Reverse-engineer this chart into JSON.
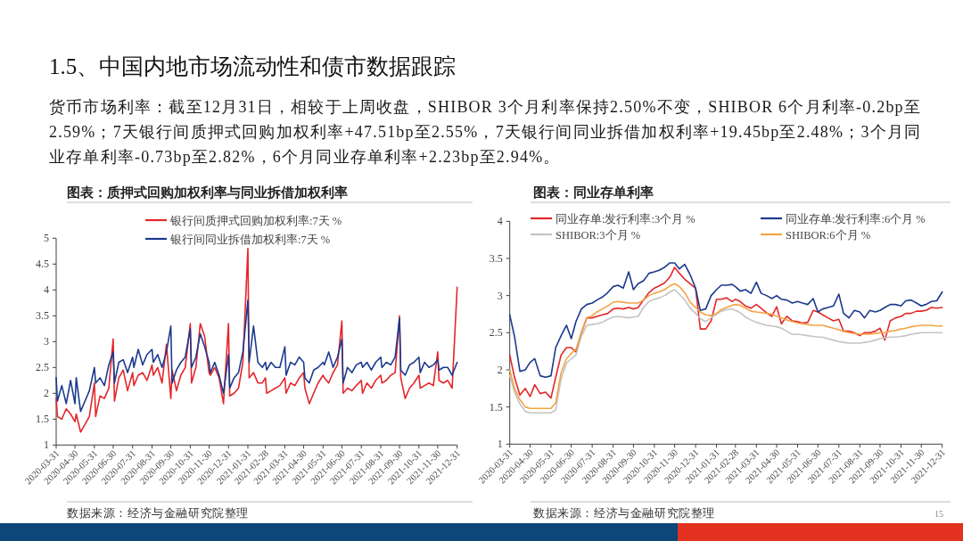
{
  "chart_data": [
    {
      "type": "other",
      "title": "1.5、中国内地市场流动性和债市数据跟踪",
      "annotations": [
        "货币市场利率：截至12月31日，相较于上周收盘，SHIBOR 3个月利率保持2.50%不变，SHIBOR 6个月利率-0.2bp至2.59%；7天银行间质押式回购加权利率+47.51bp至2.55%，7天银行间同业拆借加权利率+19.45bp至2.48%；3个月同业存单利率-0.73bp至2.82%，6个月同业存单利率+2.23bp至2.94%。",
        "15"
      ]
    },
    {
      "type": "line",
      "title": "图表：质押式回购加权利率与同业拆借加权利率",
      "annotations": [
        "数据来源：经济与金融研究院整理"
      ],
      "legend": "top",
      "line_style": "solid",
      "x": [
        "2020-03-31",
        "2020-04-02",
        "2020-04-09",
        "2020-04-16",
        "2020-04-23",
        "2020-04-30",
        "2020-05-02",
        "2020-05-09",
        "2020-05-16",
        "2020-05-23",
        "2020-05-31",
        "2020-06-02",
        "2020-06-09",
        "2020-06-16",
        "2020-06-23",
        "2020-06-30",
        "2020-07-02",
        "2020-07-09",
        "2020-07-16",
        "2020-07-23",
        "2020-07-31",
        "2020-08-02",
        "2020-08-09",
        "2020-08-16",
        "2020-08-23",
        "2020-08-31",
        "2020-09-02",
        "2020-09-09",
        "2020-09-16",
        "2020-09-23",
        "2020-09-30",
        "2020-10-02",
        "2020-10-09",
        "2020-10-16",
        "2020-10-23",
        "2020-10-31",
        "2020-11-02",
        "2020-11-09",
        "2020-11-16",
        "2020-11-23",
        "2020-11-30",
        "2020-12-02",
        "2020-12-09",
        "2020-12-16",
        "2020-12-23",
        "2020-12-31",
        "2021-01-02",
        "2021-01-09",
        "2021-01-16",
        "2021-01-23",
        "2021-01-31",
        "2021-02-02",
        "2021-02-09",
        "2021-02-16",
        "2021-02-23",
        "2021-02-28",
        "2021-03-02",
        "2021-03-09",
        "2021-03-16",
        "2021-03-23",
        "2021-03-31",
        "2021-04-02",
        "2021-04-09",
        "2021-04-16",
        "2021-04-23",
        "2021-04-30",
        "2021-05-02",
        "2021-05-09",
        "2021-05-16",
        "2021-05-23",
        "2021-05-31",
        "2021-06-02",
        "2021-06-09",
        "2021-06-16",
        "2021-06-23",
        "2021-06-30",
        "2021-07-02",
        "2021-07-09",
        "2021-07-16",
        "2021-07-23",
        "2021-07-31",
        "2021-08-02",
        "2021-08-09",
        "2021-08-16",
        "2021-08-23",
        "2021-08-31",
        "2021-09-02",
        "2021-09-09",
        "2021-09-16",
        "2021-09-23",
        "2021-09-30",
        "2021-10-02",
        "2021-10-09",
        "2021-10-16",
        "2021-10-23",
        "2021-10-31",
        "2021-11-02",
        "2021-11-09",
        "2021-11-16",
        "2021-11-23",
        "2021-11-30",
        "2021-12-02",
        "2021-12-09",
        "2021-12-16",
        "2021-12-23",
        "2021-12-31"
      ],
      "xlim": [
        "2020-03-31",
        "2021-12-31"
      ],
      "xticks": [
        "2020-03-31",
        "2020-04-30",
        "2020-05-31",
        "2020-06-30",
        "2020-07-31",
        "2020-08-31",
        "2020-09-30",
        "2020-10-31",
        "2020-11-30",
        "2020-12-31",
        "2021-01-31",
        "2021-02-28",
        "2021-03-31",
        "2021-04-30",
        "2021-05-31",
        "2021-06-30",
        "2021-07-31",
        "2021-08-31",
        "2021-09-30",
        "2021-10-31",
        "2021-11-30",
        "2021-12-31"
      ],
      "ylim": [
        1,
        5
      ],
      "yticks": [
        1,
        1.5,
        2,
        2.5,
        3,
        3.5,
        4,
        4.5,
        5
      ],
      "series": [
        {
          "name": "银行间质押式回购加权利率:7天 %",
          "color": "#e4262b",
          "values": [
            1.9,
            1.55,
            1.5,
            1.7,
            1.6,
            1.45,
            1.6,
            1.25,
            1.4,
            1.55,
            2.2,
            1.55,
            1.95,
            1.9,
            2.1,
            3.05,
            1.85,
            2.3,
            2.45,
            2.05,
            2.4,
            2.15,
            2.35,
            2.4,
            2.25,
            2.55,
            2.35,
            2.5,
            2.2,
            2.95,
            1.9,
            2.45,
            2.05,
            2.35,
            2.5,
            3.35,
            2.2,
            2.5,
            3.35,
            3.1,
            2.4,
            2.35,
            2.5,
            2.3,
            1.8,
            3.35,
            1.95,
            2.0,
            2.1,
            2.6,
            4.8,
            2.3,
            2.4,
            2.2,
            2.2,
            2.3,
            2.0,
            2.05,
            2.1,
            2.15,
            2.3,
            2.0,
            2.2,
            2.15,
            2.3,
            2.4,
            2.1,
            1.8,
            2.0,
            2.2,
            2.35,
            2.3,
            2.2,
            2.4,
            2.55,
            3.4,
            2.0,
            2.1,
            2.05,
            2.15,
            2.25,
            2.0,
            2.2,
            2.1,
            2.25,
            2.35,
            2.2,
            2.25,
            2.35,
            2.4,
            3.5,
            2.3,
            1.9,
            2.1,
            2.2,
            2.35,
            2.1,
            2.15,
            2.2,
            2.15,
            2.8,
            2.25,
            2.2,
            2.25,
            2.1,
            4.05
          ]
        },
        {
          "name": "银行间同业拆借加权利率:7天 %",
          "color": "#1b3a8e",
          "values": [
            2.3,
            1.85,
            2.15,
            1.8,
            2.25,
            1.8,
            2.3,
            1.65,
            1.85,
            2.05,
            2.5,
            2.2,
            2.3,
            2.15,
            2.55,
            2.8,
            2.2,
            2.6,
            2.65,
            2.4,
            2.7,
            2.5,
            2.85,
            2.55,
            2.75,
            2.85,
            2.6,
            2.75,
            2.5,
            2.8,
            3.3,
            2.2,
            2.45,
            2.6,
            2.7,
            3.25,
            2.5,
            2.7,
            3.15,
            2.9,
            2.6,
            2.4,
            2.6,
            2.35,
            2.0,
            2.75,
            2.1,
            2.3,
            2.4,
            2.8,
            3.8,
            2.6,
            3.3,
            2.6,
            2.5,
            2.6,
            2.45,
            2.6,
            2.5,
            2.5,
            2.9,
            2.35,
            2.6,
            2.55,
            2.7,
            2.6,
            2.3,
            2.2,
            2.45,
            2.5,
            2.6,
            2.55,
            2.8,
            2.5,
            2.7,
            3.05,
            2.2,
            2.5,
            2.4,
            2.55,
            2.6,
            2.5,
            2.6,
            2.45,
            2.6,
            2.7,
            2.5,
            2.6,
            2.55,
            2.7,
            3.45,
            2.45,
            2.35,
            2.55,
            2.6,
            2.7,
            2.4,
            2.6,
            2.5,
            2.55,
            2.65,
            2.45,
            2.5,
            2.5,
            2.35,
            2.6
          ]
        }
      ]
    },
    {
      "type": "line",
      "title": "图表：同业存单利率",
      "annotations": [
        "数据来源：经济与金融研究院整理"
      ],
      "legend": "top",
      "line_style": "solid",
      "x": [
        "2020-03-31",
        "2020-04-07",
        "2020-04-15",
        "2020-04-23",
        "2020-04-30",
        "2020-05-07",
        "2020-05-15",
        "2020-05-23",
        "2020-05-31",
        "2020-06-07",
        "2020-06-15",
        "2020-06-23",
        "2020-06-30",
        "2020-07-07",
        "2020-07-15",
        "2020-07-23",
        "2020-07-31",
        "2020-08-07",
        "2020-08-15",
        "2020-08-23",
        "2020-08-31",
        "2020-09-07",
        "2020-09-15",
        "2020-09-23",
        "2020-09-30",
        "2020-10-07",
        "2020-10-15",
        "2020-10-23",
        "2020-10-31",
        "2020-11-07",
        "2020-11-15",
        "2020-11-23",
        "2020-11-30",
        "2020-12-07",
        "2020-12-15",
        "2020-12-23",
        "2020-12-31",
        "2021-01-07",
        "2021-01-15",
        "2021-01-23",
        "2021-01-31",
        "2021-02-07",
        "2021-02-15",
        "2021-02-23",
        "2021-02-28",
        "2021-03-07",
        "2021-03-15",
        "2021-03-23",
        "2021-03-31",
        "2021-04-07",
        "2021-04-15",
        "2021-04-23",
        "2021-04-30",
        "2021-05-07",
        "2021-05-15",
        "2021-05-23",
        "2021-05-31",
        "2021-06-07",
        "2021-06-15",
        "2021-06-23",
        "2021-06-30",
        "2021-07-07",
        "2021-07-15",
        "2021-07-23",
        "2021-07-31",
        "2021-08-07",
        "2021-08-15",
        "2021-08-23",
        "2021-08-31",
        "2021-09-07",
        "2021-09-15",
        "2021-09-23",
        "2021-09-30",
        "2021-10-07",
        "2021-10-15",
        "2021-10-23",
        "2021-10-31",
        "2021-11-07",
        "2021-11-15",
        "2021-11-23",
        "2021-11-30",
        "2021-12-07",
        "2021-12-15",
        "2021-12-23",
        "2021-12-31"
      ],
      "xlim": [
        "2020-03-31",
        "2021-12-31"
      ],
      "xticks": [
        "2020-03-31",
        "2020-04-30",
        "2020-05-31",
        "2020-06-30",
        "2020-07-31",
        "2020-08-31",
        "2020-09-30",
        "2020-10-31",
        "2020-11-30",
        "2020-12-31",
        "2021-01-31",
        "2021-02-28",
        "2021-03-31",
        "2021-04-30",
        "2021-05-31",
        "2021-06-30",
        "2021-07-31",
        "2021-08-31",
        "2021-09-30",
        "2021-10-31",
        "2021-11-30",
        "2021-12-31"
      ],
      "ylim": [
        1,
        4
      ],
      "yticks": [
        1,
        1.5,
        2,
        2.5,
        3,
        3.5,
        4
      ],
      "series": [
        {
          "name": "同业存单:发行利率:3个月 %",
          "color": "#e2282a",
          "values": [
            2.2,
            1.9,
            1.66,
            1.75,
            1.64,
            1.8,
            1.68,
            1.7,
            1.62,
            1.9,
            2.2,
            2.3,
            2.3,
            2.24,
            2.5,
            2.7,
            2.7,
            2.72,
            2.74,
            2.76,
            2.82,
            2.83,
            2.82,
            2.84,
            2.82,
            2.84,
            2.94,
            3.04,
            3.1,
            3.13,
            3.17,
            3.25,
            3.38,
            3.3,
            3.22,
            3.16,
            3.1,
            2.55,
            2.55,
            2.66,
            2.95,
            2.95,
            2.97,
            2.92,
            2.95,
            2.92,
            2.86,
            2.83,
            2.88,
            2.83,
            2.77,
            2.72,
            2.85,
            2.62,
            2.72,
            2.66,
            2.65,
            2.63,
            2.64,
            2.8,
            2.78,
            2.74,
            2.7,
            2.66,
            2.68,
            2.52,
            2.52,
            2.5,
            2.46,
            2.5,
            2.5,
            2.52,
            2.56,
            2.4,
            2.66,
            2.7,
            2.72,
            2.76,
            2.76,
            2.79,
            2.79,
            2.8,
            2.84,
            2.83,
            2.84
          ]
        },
        {
          "name": "同业存单:发行利率:6个月 %",
          "color": "#1b3a8c",
          "values": [
            2.74,
            2.45,
            1.98,
            2.0,
            2.1,
            2.15,
            1.92,
            1.9,
            1.92,
            2.3,
            2.46,
            2.6,
            2.42,
            2.65,
            2.82,
            2.88,
            2.9,
            2.94,
            2.98,
            3.04,
            3.12,
            3.14,
            3.1,
            3.32,
            3.08,
            3.16,
            3.2,
            3.3,
            3.32,
            3.34,
            3.38,
            3.44,
            3.44,
            3.36,
            3.42,
            3.28,
            3.1,
            2.8,
            2.82,
            3.0,
            3.08,
            3.14,
            3.14,
            3.15,
            3.12,
            3.06,
            3.08,
            3.03,
            3.18,
            3.03,
            3.0,
            2.96,
            3.0,
            2.95,
            2.94,
            2.9,
            2.92,
            2.9,
            2.88,
            2.96,
            2.78,
            2.82,
            2.84,
            2.86,
            3.02,
            2.76,
            2.7,
            2.8,
            2.78,
            2.7,
            2.8,
            2.78,
            2.8,
            2.84,
            2.88,
            2.88,
            2.86,
            2.93,
            2.94,
            2.9,
            2.86,
            2.88,
            2.92,
            2.93,
            3.05
          ]
        },
        {
          "name": "SHIBOR:3个月 %",
          "color": "#c4c4c4",
          "values": [
            1.92,
            1.7,
            1.54,
            1.44,
            1.42,
            1.42,
            1.42,
            1.42,
            1.42,
            1.46,
            1.88,
            2.09,
            2.15,
            2.2,
            2.45,
            2.6,
            2.61,
            2.62,
            2.64,
            2.68,
            2.71,
            2.72,
            2.71,
            2.7,
            2.71,
            2.72,
            2.84,
            2.92,
            2.95,
            2.97,
            3.0,
            3.05,
            3.08,
            3.02,
            2.94,
            2.83,
            2.76,
            2.69,
            2.65,
            2.7,
            2.75,
            2.79,
            2.81,
            2.82,
            2.8,
            2.77,
            2.71,
            2.67,
            2.64,
            2.62,
            2.6,
            2.59,
            2.58,
            2.56,
            2.52,
            2.48,
            2.48,
            2.47,
            2.46,
            2.45,
            2.44,
            2.44,
            2.42,
            2.4,
            2.38,
            2.37,
            2.36,
            2.36,
            2.36,
            2.37,
            2.38,
            2.4,
            2.42,
            2.43,
            2.44,
            2.44,
            2.45,
            2.46,
            2.48,
            2.49,
            2.5,
            2.5,
            2.5,
            2.5,
            2.5
          ]
        },
        {
          "name": "SHIBOR:6个月 %",
          "color": "#f3a443",
          "values": [
            2.0,
            1.75,
            1.6,
            1.5,
            1.48,
            1.48,
            1.48,
            1.48,
            1.48,
            1.56,
            1.96,
            2.15,
            2.22,
            2.28,
            2.5,
            2.7,
            2.73,
            2.78,
            2.82,
            2.86,
            2.91,
            2.92,
            2.91,
            2.9,
            2.9,
            2.9,
            2.94,
            3.0,
            3.03,
            3.05,
            3.08,
            3.13,
            3.16,
            3.12,
            3.04,
            2.91,
            2.84,
            2.78,
            2.74,
            2.73,
            2.76,
            2.81,
            2.84,
            2.87,
            2.88,
            2.87,
            2.83,
            2.79,
            2.78,
            2.77,
            2.76,
            2.75,
            2.72,
            2.7,
            2.67,
            2.65,
            2.63,
            2.62,
            2.61,
            2.6,
            2.6,
            2.6,
            2.58,
            2.56,
            2.54,
            2.52,
            2.5,
            2.49,
            2.48,
            2.48,
            2.48,
            2.49,
            2.5,
            2.5,
            2.52,
            2.53,
            2.55,
            2.56,
            2.58,
            2.59,
            2.6,
            2.6,
            2.6,
            2.59,
            2.59
          ]
        }
      ]
    }
  ]
}
